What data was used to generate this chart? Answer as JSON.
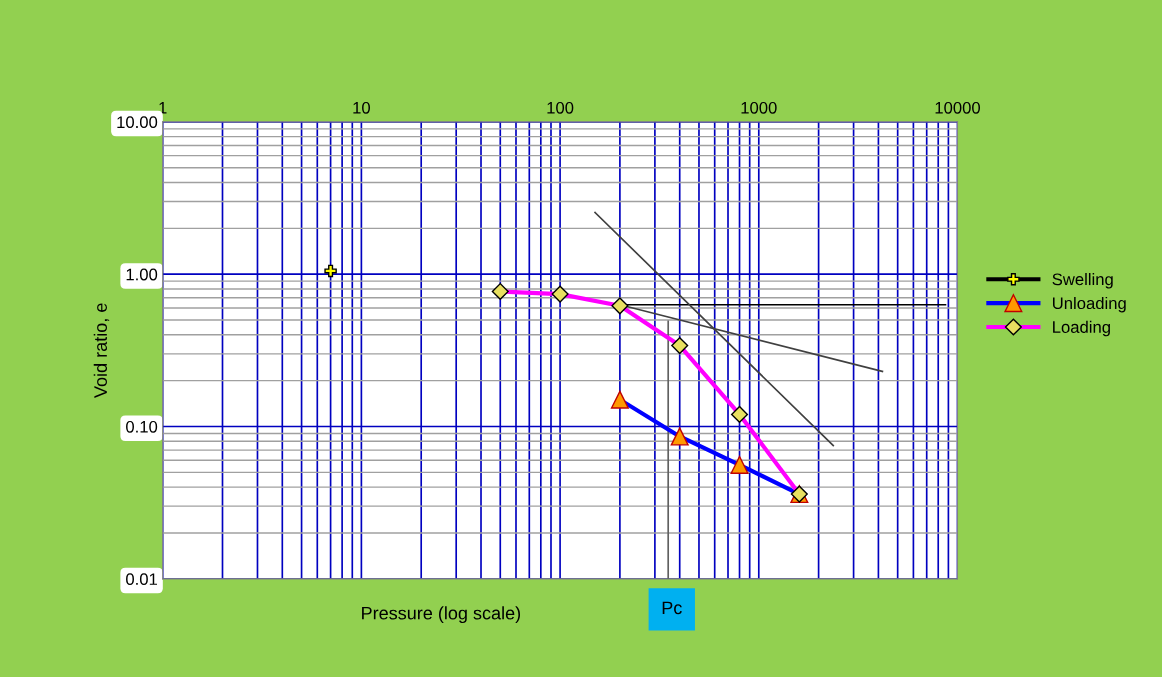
{
  "chart_data": {
    "type": "line",
    "xlabel": "Pressure (log scale)",
    "ylabel": "Void ratio, e",
    "log": "xy",
    "xlim": [
      1,
      10000
    ],
    "ylim": [
      0.01,
      10
    ],
    "xticks": [
      1,
      10,
      100,
      1000,
      10000
    ],
    "yticks": [
      {
        "value": 0.01,
        "label": "0.01"
      },
      {
        "value": 0.1,
        "label": "0.10"
      },
      {
        "value": 1,
        "label": "1.00"
      },
      {
        "value": 10,
        "label": "10.00"
      }
    ],
    "grid": true,
    "legend": "right",
    "series": [
      {
        "name": "Swelling",
        "color": "#000000",
        "marker": "cross",
        "x": [
          7
        ],
        "values": [
          1.05
        ]
      },
      {
        "name": "Unloading",
        "color": "#0000ff",
        "marker": "triangle",
        "x": [
          200,
          400,
          800,
          1600
        ],
        "values": [
          0.15,
          0.086,
          0.056,
          0.036
        ]
      },
      {
        "name": "Loading",
        "color": "#ff00ff",
        "marker": "diamond",
        "x": [
          50,
          100,
          200,
          400,
          800,
          1600
        ],
        "values": [
          0.77,
          0.74,
          0.62,
          0.34,
          0.12,
          0.036
        ]
      },
      {
        "color": "#000000",
        "x": [
          200,
          8700
        ],
        "values": [
          0.63,
          0.63
        ]
      },
      {
        "color": "#404040",
        "x": [
          200,
          4190
        ],
        "values": [
          0.63,
          0.23
        ]
      },
      {
        "color": "#404040",
        "x": [
          150,
          2370
        ],
        "values": [
          2.54,
          0.075
        ]
      },
      {
        "color": "#606060",
        "x": [
          350,
          350
        ],
        "values": [
          0.49,
          0.01
        ]
      }
    ],
    "annotations": [
      {
        "text": "Pc",
        "x": 350,
        "y": 0.01
      }
    ]
  }
}
